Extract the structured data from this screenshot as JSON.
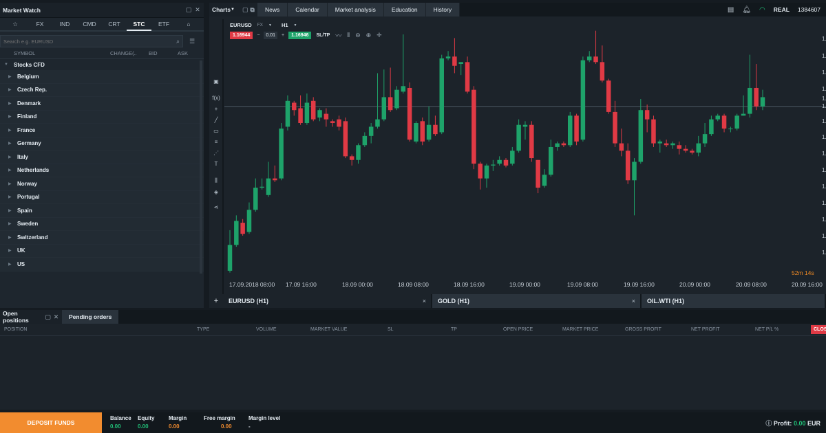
{
  "market_watch": {
    "title": "Market Watch",
    "tabs": [
      "☆",
      "FX",
      "IND",
      "CMD",
      "CRT",
      "STC",
      "ETF",
      "⌂"
    ],
    "active_tab": "STC",
    "search_placeholder": "Search e.g. EURUSD",
    "columns": {
      "symbol": "SYMBOL",
      "change": "CHANGE(..",
      "bid": "BID",
      "ask": "ASK"
    },
    "group": "Stocks CFD",
    "countries": [
      "Belgium",
      "Czech Rep.",
      "Denmark",
      "Finland",
      "France",
      "Germany",
      "Italy",
      "Netherlands",
      "Norway",
      "Portugal",
      "Spain",
      "Sweden",
      "Switzerland",
      "UK",
      "US"
    ]
  },
  "charts": {
    "title": "Charts",
    "nav_tabs": [
      "News",
      "Calendar",
      "Market analysis",
      "Education",
      "History"
    ],
    "account_type": "REAL",
    "account_number": "1384607",
    "symbol": "EURUSD",
    "symbol_type": "FX",
    "timeframe": "H1",
    "sell_price": "1.16944",
    "spread": "0.01",
    "buy_price": "1.16946",
    "sltp": "SL/TP",
    "countdown": "52m 14s",
    "x_labels": [
      "17.09.2018 08:00",
      "17.09 16:00",
      "18.09 00:00",
      "18.09 08:00",
      "18.09 16:00",
      "19.09 00:00",
      "19.09 08:00",
      "19.09 16:00",
      "20.09 00:00",
      "20.09 08:00",
      "20.09 16:00"
    ],
    "y_label_prefix": "1.",
    "tabs": [
      {
        "label": "EURUSD (H1)",
        "close": "×"
      },
      {
        "label": "GOLD (H1)",
        "close": "×"
      },
      {
        "label": "OIL.WTI (H1)",
        "close": ""
      }
    ],
    "add_tab": "+"
  },
  "chart_data": {
    "type": "candlestick",
    "colors": {
      "up": "#1ea36a",
      "down": "#e03a45"
    },
    "candles": [
      [
        3.0,
        17.0,
        25.0,
        2.0
      ],
      [
        17.0,
        30.0,
        33.0,
        16.0
      ],
      [
        29.0,
        23.0,
        31.0,
        22.0
      ],
      [
        24.0,
        36.0,
        40.0,
        23.0
      ],
      [
        36.0,
        48.0,
        53.0,
        35.0
      ],
      [
        48.0,
        48.5,
        53.0,
        47.0
      ],
      [
        44.0,
        53.0,
        62.0,
        43.0
      ],
      [
        53.0,
        52.0,
        60.0,
        51.0
      ],
      [
        53.0,
        80.0,
        83.0,
        52.0
      ],
      [
        81.0,
        95.0,
        98.0,
        79.0
      ],
      [
        94.0,
        90.0,
        95.0,
        87.0
      ],
      [
        91.0,
        83.0,
        98.0,
        82.0
      ],
      [
        83.0,
        94.0,
        99.0,
        82.0
      ],
      [
        95.0,
        85.0,
        97.0,
        84.0
      ],
      [
        86.0,
        90.0,
        91.0,
        84.0
      ],
      [
        88.0,
        85.0,
        91.0,
        81.0
      ],
      [
        84.0,
        83.0,
        85.0,
        81.0
      ],
      [
        85.0,
        81.0,
        87.0,
        79.0
      ],
      [
        84.0,
        65.0,
        86.0,
        64.0
      ],
      [
        65.0,
        63.0,
        66.0,
        60.0
      ],
      [
        63.0,
        71.0,
        72.0,
        61.0
      ],
      [
        71.0,
        76.0,
        78.0,
        70.0
      ],
      [
        76.0,
        81.0,
        83.0,
        72.0
      ],
      [
        81.0,
        85.0,
        110.0,
        80.0
      ],
      [
        85.0,
        97.0,
        112.0,
        84.0
      ],
      [
        97.0,
        90.0,
        113.0,
        89.0
      ],
      [
        91.0,
        101.0,
        103.0,
        90.0
      ],
      [
        100.0,
        103.0,
        131.0,
        99.0
      ],
      [
        102.0,
        74.0,
        105.0,
        73.0
      ],
      [
        73.0,
        83.0,
        84.0,
        72.0
      ],
      [
        84.0,
        73.0,
        86.0,
        71.0
      ],
      [
        74.0,
        82.0,
        92.0,
        73.0
      ],
      [
        82.0,
        77.0,
        87.0,
        76.0
      ],
      [
        78.0,
        118.0,
        120.0,
        77.0
      ],
      [
        118.0,
        119.0,
        122.0,
        117.0
      ],
      [
        119.0,
        114.0,
        129.0,
        110.0
      ],
      [
        115.0,
        116.0,
        116.0,
        109.0
      ],
      [
        116.0,
        100.0,
        119.0,
        99.0
      ],
      [
        101.0,
        61.0,
        103.0,
        58.0
      ],
      [
        61.0,
        53.0,
        62.0,
        47.0
      ],
      [
        53.0,
        60.0,
        61.0,
        48.0
      ],
      [
        60.0,
        60.5,
        63.0,
        57.0
      ],
      [
        61.0,
        63.0,
        65.0,
        60.0
      ],
      [
        63.0,
        60.0,
        64.0,
        59.0
      ],
      [
        61.0,
        68.0,
        70.0,
        60.0
      ],
      [
        68.0,
        82.0,
        85.0,
        67.0
      ],
      [
        81.0,
        82.0,
        84.0,
        74.0
      ],
      [
        82.0,
        64.0,
        84.0,
        62.0
      ],
      [
        63.0,
        48.0,
        63.0,
        45.0
      ],
      [
        49.0,
        55.0,
        58.0,
        48.0
      ],
      [
        55.0,
        70.0,
        74.0,
        54.0
      ],
      [
        70.0,
        72.0,
        73.0,
        68.0
      ],
      [
        72.0,
        71.0,
        73.0,
        70.0
      ],
      [
        71.0,
        87.0,
        89.0,
        70.0
      ],
      [
        87.0,
        73.0,
        88.0,
        71.0
      ],
      [
        74.0,
        117.0,
        119.0,
        73.0
      ],
      [
        117.0,
        119.0,
        122.0,
        116.0
      ],
      [
        119.0,
        116.0,
        133.0,
        115.0
      ],
      [
        116.0,
        106.0,
        125.0,
        105.0
      ],
      [
        106.0,
        89.0,
        107.0,
        88.0
      ],
      [
        89.0,
        72.0,
        95.0,
        70.0
      ],
      [
        72.0,
        68.0,
        80.0,
        65.0
      ],
      [
        68.0,
        52.0,
        72.0,
        50.0
      ],
      [
        52.0,
        62.0,
        64.0,
        33.0
      ],
      [
        62.0,
        90.0,
        96.0,
        61.0
      ],
      [
        90.0,
        85.0,
        93.0,
        78.0
      ],
      [
        85.0,
        72.0,
        87.0,
        70.0
      ],
      [
        72.0,
        73.0,
        74.0,
        67.0
      ],
      [
        72.0,
        71.0,
        74.0,
        70.0
      ],
      [
        71.0,
        72.0,
        73.0,
        69.0
      ],
      [
        71.0,
        69.0,
        73.0,
        66.0
      ],
      [
        69.0,
        68.0,
        71.0,
        67.0
      ],
      [
        68.0,
        67.0,
        69.0,
        66.0
      ],
      [
        67.0,
        72.0,
        76.0,
        65.0
      ],
      [
        72.0,
        77.0,
        83.0,
        70.0
      ],
      [
        77.0,
        85.0,
        87.0,
        76.0
      ],
      [
        85.0,
        87.0,
        88.0,
        84.0
      ],
      [
        87.0,
        80.0,
        88.0,
        78.0
      ],
      [
        80.0,
        80.0,
        81.0,
        78.0
      ],
      [
        80.0,
        87.0,
        88.0,
        79.0
      ],
      [
        87.0,
        88.0,
        98.0,
        87.0
      ],
      [
        88.0,
        102.0,
        120.0,
        86.0
      ],
      [
        102.0,
        92.0,
        115.0,
        90.0
      ],
      [
        92.0,
        97.0,
        101.0,
        90.0
      ]
    ],
    "current_price_level": 92.0,
    "y_range": [
      0,
      134
    ]
  },
  "positions": {
    "tabs": [
      "Open positions",
      "Pending orders"
    ],
    "columns": [
      "POSITION",
      "TYPE",
      "VOLUME",
      "MARKET VALUE",
      "SL",
      "TP",
      "OPEN PRICE",
      "MARKET PRICE",
      "GROSS PROFIT",
      "NET PROFIT",
      "NET P/L %"
    ],
    "close_label": "CLOSE"
  },
  "footer": {
    "deposit": "DEPOSIT FUNDS",
    "stats": [
      {
        "label": "Balance",
        "value": "0.00",
        "color": "#21c078"
      },
      {
        "label": "Equity",
        "value": "0.00",
        "color": "#21c078"
      },
      {
        "label": "Margin",
        "value": "0.00",
        "color": "#f28c2f"
      },
      {
        "label": "Free margin",
        "value": "0.00",
        "color": "#f28c2f"
      },
      {
        "label": "Margin level",
        "value": "-",
        "color": "#e6edf3"
      }
    ],
    "profit_label": "Profit:",
    "profit_value": "0.00",
    "currency": "EUR"
  }
}
